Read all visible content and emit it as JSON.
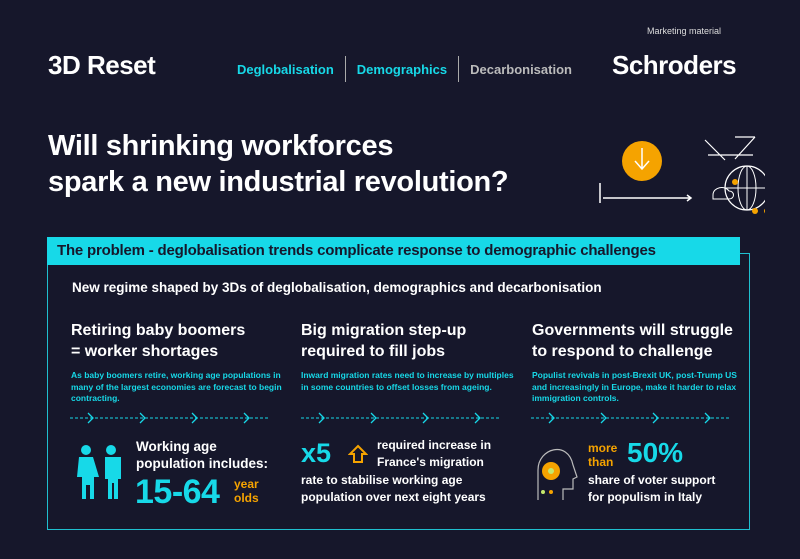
{
  "header": {
    "marketing": "Marketing material",
    "brand": "3D Reset",
    "nav": [
      "Deglobalisation",
      "Demographics",
      "Decarbonisation"
    ],
    "logo": "Schroders"
  },
  "title": [
    "Will shrinking workforces",
    "spark a new industrial revolution?"
  ],
  "banner": "The problem - deglobalisation trends complicate response to demographic challenges",
  "subtitle": "New regime shaped by 3Ds of deglobalisation, demographics and decarbonisation",
  "columns": [
    {
      "heading": [
        "Retiring baby boomers",
        "= worker shortages"
      ],
      "text": "As baby boomers retire, working age populations in many of the largest economies are forecast to begin contracting.",
      "stat_label": [
        "Working age",
        "population includes:"
      ],
      "stat_value": "15-64",
      "stat_unit": [
        "year",
        "olds"
      ]
    },
    {
      "heading": [
        "Big migration step-up",
        "required to fill jobs"
      ],
      "text": "Inward migration rates need to increase by multiples in some countries to offset losses from ageing.",
      "stat_value": "x5",
      "stat_label": [
        "required increase in",
        "France's migration",
        "rate to stabilise working age",
        "population over next eight years"
      ]
    },
    {
      "heading": [
        "Governments will struggle",
        "to respond to challenge"
      ],
      "text": "Populist revivals in post-Brexit UK, post-Trump US and increasingly in Europe, make it harder to relax immigration controls.",
      "stat_prefix": [
        "more",
        "than"
      ],
      "stat_value": "50%",
      "stat_label": [
        "share of voter support",
        "for populism in Italy"
      ]
    }
  ],
  "colors": {
    "background": "#16172b",
    "teal": "#17d9e8",
    "orange": "#f5a300"
  }
}
